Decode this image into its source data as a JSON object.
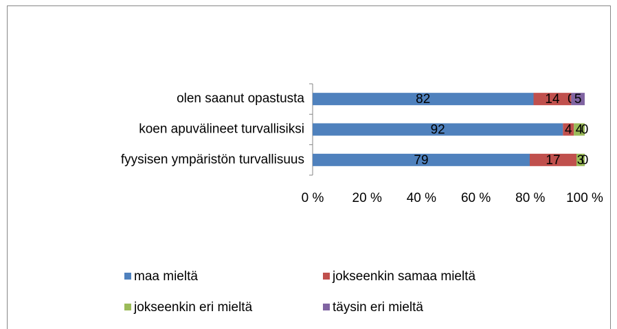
{
  "chart_data": {
    "type": "bar",
    "orientation": "horizontal",
    "stacking": "percent",
    "categories": [
      "olen saanut opastusta",
      "koen apuvälineet turvallisiksi",
      "fyysisen ympäristön turvallisuus"
    ],
    "series": [
      {
        "name": "maa mieltä",
        "color": "#4f81bd",
        "values": [
          82,
          92,
          79
        ]
      },
      {
        "name": "jokseenkin samaa mieltä",
        "color": "#c0504d",
        "values": [
          14,
          4,
          17
        ]
      },
      {
        "name": "jokseenkin eri mieltä",
        "color": "#9bbb59",
        "values": [
          0,
          4,
          3
        ]
      },
      {
        "name": "täysin eri mieltä",
        "color": "#8064a2",
        "values": [
          5,
          0,
          0
        ]
      }
    ],
    "xlim": [
      0,
      100
    ],
    "xticks": [
      {
        "value": 0,
        "label": "0 %"
      },
      {
        "value": 20,
        "label": "20 %"
      },
      {
        "value": 40,
        "label": "40 %"
      },
      {
        "value": 60,
        "label": "60 %"
      },
      {
        "value": 80,
        "label": "80 %"
      },
      {
        "value": 100,
        "label": "100 %"
      }
    ],
    "legend": "bottom",
    "data_labels": true
  }
}
